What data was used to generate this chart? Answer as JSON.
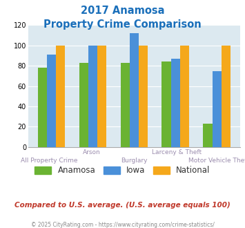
{
  "title_line1": "2017 Anamosa",
  "title_line2": "Property Crime Comparison",
  "title_color": "#1a6fba",
  "categories": [
    "All Property Crime",
    "Arson",
    "Burglary",
    "Larceny & Theft",
    "Motor Vehicle Theft"
  ],
  "cat_labels_top": [
    "",
    "Arson",
    "",
    "Larceny & Theft",
    ""
  ],
  "cat_labels_bot": [
    "All Property Crime",
    "",
    "Burglary",
    "",
    "Motor Vehicle Theft"
  ],
  "anamosa": [
    78,
    83,
    83,
    84,
    23
  ],
  "iowa": [
    91,
    100,
    112,
    87,
    75
  ],
  "national": [
    100,
    100,
    100,
    100,
    100
  ],
  "anamosa_color": "#6ab332",
  "iowa_color": "#4a90d9",
  "national_color": "#f5a81b",
  "legend_labels": [
    "Anamosa",
    "Iowa",
    "National"
  ],
  "ylim": [
    0,
    120
  ],
  "yticks": [
    0,
    20,
    40,
    60,
    80,
    100,
    120
  ],
  "chart_bg": "#dce9f0",
  "note_text": "Compared to U.S. average. (U.S. average equals 100)",
  "note_color": "#c0392b",
  "footer_text": "© 2025 CityRating.com - https://www.cityrating.com/crime-statistics/",
  "footer_color": "#888888",
  "xlabel_color": "#9b8dae"
}
